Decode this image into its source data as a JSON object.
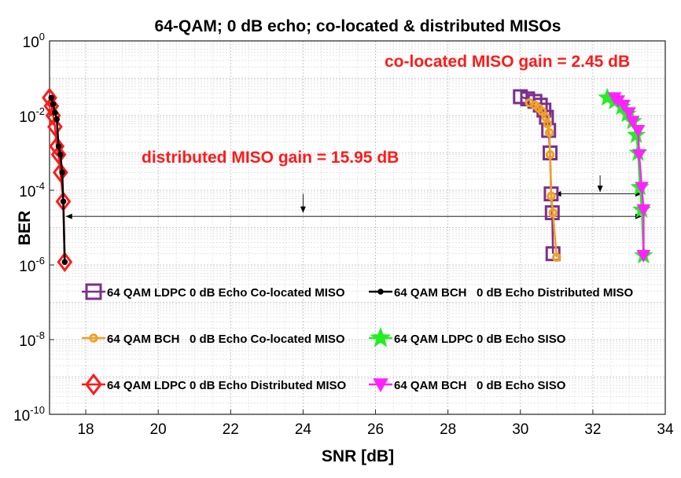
{
  "chart_data": {
    "type": "line",
    "title": "64-QAM; 0 dB echo; co-located & distributed MISOs",
    "xlabel": "SNR [dB]",
    "ylabel": "BER",
    "xlim": [
      17,
      34
    ],
    "ylim_exponent": [
      -10,
      0
    ],
    "yscale": "log",
    "grid": true,
    "x_ticks": [
      "18",
      "20",
      "22",
      "24",
      "26",
      "28",
      "30",
      "32",
      "34"
    ],
    "y_ticks": [
      {
        "base": "10",
        "exp": "0"
      },
      {
        "base": "10",
        "exp": "-2"
      },
      {
        "base": "10",
        "exp": "-4"
      },
      {
        "base": "10",
        "exp": "-6"
      },
      {
        "base": "10",
        "exp": "-8"
      },
      {
        "base": "10",
        "exp": "-10"
      }
    ],
    "legend_position": "lower inside",
    "series": [
      {
        "name": "64 QAM LDPC 0 dB Echo Co-located MISO",
        "color": "#7b2f8e",
        "marker": "square",
        "points": [
          [
            30.0,
            0.032
          ],
          [
            30.2,
            0.028
          ],
          [
            30.4,
            0.024
          ],
          [
            30.55,
            0.019
          ],
          [
            30.65,
            0.014
          ],
          [
            30.72,
            0.009
          ],
          [
            30.78,
            0.004
          ],
          [
            30.82,
            0.001
          ],
          [
            30.85,
            8e-05
          ],
          [
            30.88,
            2.5e-05
          ],
          [
            30.9,
            2e-06
          ]
        ]
      },
      {
        "name": "64 QAM BCH   0 dB Echo Distributed MISO",
        "color": "#000000",
        "marker": "dot",
        "points": [
          [
            17.05,
            0.03
          ],
          [
            17.1,
            0.02
          ],
          [
            17.15,
            0.012
          ],
          [
            17.2,
            0.008
          ],
          [
            17.25,
            0.0015
          ],
          [
            17.3,
            0.0009
          ],
          [
            17.35,
            0.0003
          ],
          [
            17.38,
            5e-05
          ],
          [
            17.42,
            1.2e-06
          ]
        ]
      },
      {
        "name": "64 QAM BCH   0 dB Echo Co-located MISO",
        "color": "#f0a020",
        "marker": "circle",
        "points": [
          [
            30.25,
            0.022
          ],
          [
            30.4,
            0.019
          ],
          [
            30.5,
            0.016
          ],
          [
            30.6,
            0.013
          ],
          [
            30.7,
            0.009
          ],
          [
            30.75,
            0.006
          ],
          [
            30.8,
            0.0035
          ],
          [
            30.82,
            0.0009
          ],
          [
            30.85,
            7e-05
          ],
          [
            30.9,
            2.5e-05
          ],
          [
            31.0,
            1.6e-06
          ]
        ]
      },
      {
        "name": "64 QAM LDPC 0 dB Echo SISO",
        "color": "#22ee22",
        "marker": "star",
        "points": [
          [
            32.4,
            0.03
          ],
          [
            32.6,
            0.024
          ],
          [
            32.8,
            0.017
          ],
          [
            32.95,
            0.011
          ],
          [
            33.1,
            0.007
          ],
          [
            33.2,
            0.003
          ],
          [
            33.25,
            0.001
          ],
          [
            33.3,
            0.00012
          ],
          [
            33.35,
            3e-05
          ],
          [
            33.4,
            1.8e-06
          ]
        ]
      },
      {
        "name": "64 QAM LDPC 0 dB Echo Distributed MISO",
        "color": "#ff1a1a",
        "marker": "diamond",
        "points": [
          [
            17.0,
            0.03
          ],
          [
            17.05,
            0.018
          ],
          [
            17.1,
            0.01
          ],
          [
            17.15,
            0.005
          ],
          [
            17.2,
            0.0015
          ],
          [
            17.25,
            0.0009
          ],
          [
            17.3,
            0.0003
          ],
          [
            17.38,
            5e-05
          ],
          [
            17.42,
            1.2e-06
          ]
        ]
      },
      {
        "name": "64 QAM BCH   0 dB Echo SISO",
        "color": "#ff22ff",
        "marker": "triangle-down",
        "points": [
          [
            32.6,
            0.03
          ],
          [
            32.7,
            0.025
          ],
          [
            32.85,
            0.019
          ],
          [
            33.0,
            0.012
          ],
          [
            33.1,
            0.007
          ],
          [
            33.25,
            0.004
          ],
          [
            33.28,
            0.0009
          ],
          [
            33.35,
            0.00012
          ],
          [
            33.4,
            3e-05
          ],
          [
            33.4,
            1.8e-06
          ]
        ]
      }
    ],
    "annotations": [
      {
        "text": "co-located MISO gain = 2.45 dB",
        "color": "#ff1a1a"
      },
      {
        "text": "distributed MISO gain = 15.95 dB",
        "color": "#ff1a1a"
      }
    ],
    "gain_arrows": [
      {
        "label": "co-located",
        "x_from": 30.95,
        "x_to": 33.35,
        "y": 8e-05,
        "pointer_x": 32.2,
        "pointer_y_from": 0.00025,
        "pointer_y_to": 9e-05
      },
      {
        "label": "distributed",
        "x_from": 17.45,
        "x_to": 33.35,
        "y": 2e-05,
        "pointer_x": 24.0,
        "pointer_y_from": 8e-05,
        "pointer_y_to": 2.5e-05
      }
    ]
  }
}
